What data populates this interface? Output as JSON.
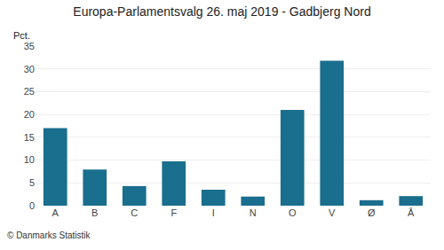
{
  "chart_data": {
    "type": "bar",
    "title": "Europa-Parlamentsvalg 26. maj 2019 - Gadbjerg Nord",
    "categories": [
      "A",
      "B",
      "C",
      "F",
      "I",
      "N",
      "O",
      "V",
      "Ø",
      "Å"
    ],
    "values": [
      17.0,
      7.9,
      4.3,
      9.7,
      3.5,
      2.0,
      21.0,
      31.8,
      1.2,
      2.1
    ],
    "color": "#1a6e8e",
    "ylabel": "Pct.",
    "ylim": [
      0,
      35
    ],
    "yticks": [
      0,
      5,
      10,
      15,
      20,
      25,
      30,
      35
    ],
    "grid": true,
    "annotations": [
      "© Danmarks Statistik"
    ]
  }
}
